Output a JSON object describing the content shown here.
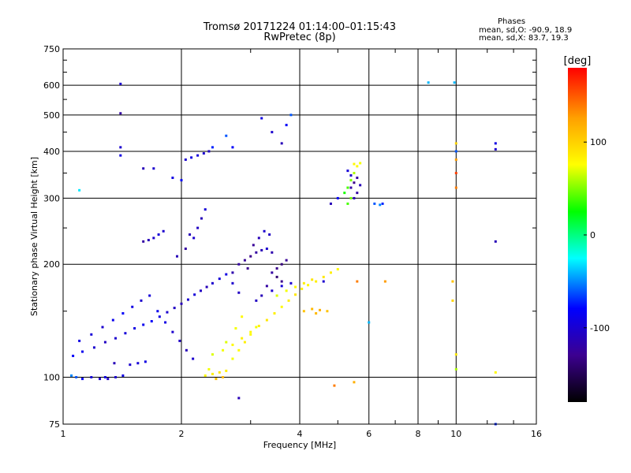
{
  "chart_data": {
    "type": "scatter",
    "title": "Tromsø 20171224 01:14:00–01:15:43",
    "subtitle": "RwPretec (8p)",
    "xlabel": "Frequency [MHz]",
    "ylabel": "Stationary phase Virtual Height [km]",
    "x_scale": "log",
    "y_scale": "log",
    "xlim": [
      1,
      16
    ],
    "ylim": [
      75,
      750
    ],
    "x_ticks": [
      1,
      2,
      4,
      6,
      8,
      10,
      16
    ],
    "x_tick_labels": [
      "1",
      "2",
      "4",
      "6",
      "8",
      "10",
      "16"
    ],
    "y_ticks": [
      75,
      100,
      200,
      300,
      400,
      500,
      600,
      750
    ],
    "y_tick_labels": [
      "75",
      "100",
      "200",
      "300",
      "400",
      "500",
      "600",
      "750"
    ],
    "grid": true,
    "colorbar": {
      "title": "[deg]",
      "range": [
        -180,
        180
      ],
      "ticks": [
        100,
        0,
        -100
      ],
      "tick_labels": [
        "100",
        "0",
        "-100"
      ],
      "colormap": [
        "#000000",
        "#3c0090",
        "#0000ff",
        "#00ffff",
        "#00ff00",
        "#ffff00",
        "#ffa000",
        "#ff0000"
      ]
    },
    "legend": {
      "heading": "Phases",
      "lines": [
        "mean, sd,O: -90.9, 18.9",
        "mean, sd,X:  83.7, 19.3"
      ]
    },
    "series": [
      {
        "values": [
          [
            1.08,
            100,
            -60
          ],
          [
            1.12,
            99,
            -80
          ],
          [
            1.18,
            100,
            -95
          ],
          [
            1.24,
            99,
            -100
          ],
          [
            1.3,
            99,
            -105
          ],
          [
            1.36,
            100,
            -100
          ],
          [
            1.42,
            101,
            -90
          ],
          [
            1.05,
            101,
            -50
          ],
          [
            1.28,
            100,
            -90
          ],
          [
            1.35,
            109,
            -110
          ],
          [
            1.48,
            108,
            -100
          ],
          [
            1.55,
            109,
            -95
          ],
          [
            1.62,
            110,
            -90
          ],
          [
            1.06,
            114,
            -80
          ],
          [
            1.12,
            117,
            -85
          ],
          [
            1.2,
            120,
            -100
          ],
          [
            1.28,
            124,
            -105
          ],
          [
            1.36,
            127,
            -100
          ],
          [
            1.44,
            131,
            -95
          ],
          [
            1.52,
            135,
            -90
          ],
          [
            1.6,
            138,
            -85
          ],
          [
            1.68,
            141,
            -80
          ],
          [
            1.76,
            145,
            -90
          ],
          [
            1.84,
            149,
            -100
          ],
          [
            1.92,
            153,
            -105
          ],
          [
            2.0,
            157,
            -110
          ],
          [
            2.08,
            161,
            -100
          ],
          [
            2.16,
            166,
            -95
          ],
          [
            2.24,
            170,
            -105
          ],
          [
            2.32,
            174,
            -110
          ],
          [
            2.4,
            178,
            -100
          ],
          [
            2.5,
            183,
            -95
          ],
          [
            2.6,
            188,
            -90
          ],
          [
            2.7,
            178,
            -100
          ],
          [
            2.8,
            168,
            -105
          ],
          [
            1.1,
            125,
            -90
          ],
          [
            1.18,
            130,
            -95
          ],
          [
            1.26,
            136,
            -100
          ],
          [
            1.34,
            142,
            -85
          ],
          [
            1.42,
            148,
            -80
          ],
          [
            1.5,
            154,
            -90
          ],
          [
            1.58,
            160,
            -100
          ],
          [
            1.66,
            165,
            -95
          ],
          [
            1.74,
            150,
            -85
          ],
          [
            1.82,
            140,
            -90
          ],
          [
            1.9,
            132,
            -100
          ],
          [
            1.98,
            125,
            -105
          ],
          [
            2.06,
            118,
            -110
          ],
          [
            2.14,
            112,
            -100
          ],
          [
            1.95,
            210,
            -110
          ],
          [
            2.05,
            220,
            -120
          ],
          [
            2.15,
            235,
            -100
          ],
          [
            2.2,
            250,
            -105
          ],
          [
            2.25,
            265,
            -110
          ],
          [
            2.3,
            280,
            -95
          ],
          [
            2.1,
            240,
            -110
          ],
          [
            1.7,
            235,
            -100
          ],
          [
            1.75,
            240,
            -95
          ],
          [
            1.8,
            245,
            -100
          ],
          [
            1.65,
            232,
            -110
          ],
          [
            1.6,
            230,
            -120
          ],
          [
            2.05,
            380,
            -100
          ],
          [
            2.12,
            385,
            -90
          ],
          [
            2.2,
            390,
            -95
          ],
          [
            2.28,
            395,
            -100
          ],
          [
            2.35,
            400,
            -105
          ],
          [
            2.7,
            190,
            -115
          ],
          [
            2.8,
            200,
            -120
          ],
          [
            2.9,
            205,
            -125
          ],
          [
            3.0,
            210,
            -130
          ],
          [
            3.1,
            215,
            -120
          ],
          [
            3.2,
            218,
            -110
          ],
          [
            3.3,
            220,
            -100
          ],
          [
            3.4,
            215,
            -115
          ],
          [
            2.95,
            195,
            -130
          ],
          [
            3.05,
            225,
            -125
          ],
          [
            3.15,
            235,
            -110
          ],
          [
            3.25,
            245,
            -100
          ],
          [
            3.35,
            240,
            -105
          ],
          [
            3.4,
            190,
            -120
          ],
          [
            3.5,
            195,
            -130
          ],
          [
            3.6,
            200,
            -135
          ],
          [
            3.7,
            205,
            -125
          ],
          [
            3.5,
            185,
            -140
          ],
          [
            3.6,
            180,
            -130
          ],
          [
            3.3,
            175,
            -120
          ],
          [
            3.2,
            165,
            -110
          ],
          [
            3.4,
            170,
            -100
          ],
          [
            3.6,
            175,
            -95
          ],
          [
            3.8,
            178,
            -100
          ],
          [
            3.1,
            160,
            -105
          ],
          [
            2.4,
            115,
            70
          ],
          [
            2.55,
            118,
            75
          ],
          [
            2.7,
            122,
            80
          ],
          [
            2.85,
            127,
            85
          ],
          [
            3.0,
            132,
            80
          ],
          [
            3.15,
            137,
            85
          ],
          [
            3.3,
            142,
            90
          ],
          [
            3.45,
            148,
            85
          ],
          [
            3.6,
            154,
            80
          ],
          [
            3.75,
            160,
            85
          ],
          [
            3.9,
            166,
            90
          ],
          [
            4.05,
            172,
            85
          ],
          [
            4.2,
            176,
            80
          ],
          [
            4.4,
            180,
            85
          ],
          [
            4.6,
            185,
            90
          ],
          [
            4.8,
            190,
            85
          ],
          [
            5.0,
            194,
            80
          ],
          [
            3.5,
            165,
            70
          ],
          [
            3.7,
            170,
            75
          ],
          [
            3.9,
            174,
            80
          ],
          [
            4.1,
            178,
            85
          ],
          [
            4.3,
            182,
            90
          ],
          [
            2.3,
            101,
            80
          ],
          [
            2.4,
            102,
            85
          ],
          [
            2.5,
            103,
            90
          ],
          [
            2.6,
            104,
            85
          ],
          [
            2.35,
            105,
            75
          ],
          [
            2.45,
            99,
            110
          ],
          [
            2.55,
            100,
            115
          ],
          [
            2.7,
            112,
            75
          ],
          [
            2.8,
            118,
            80
          ],
          [
            2.9,
            124,
            85
          ],
          [
            3.0,
            130,
            80
          ],
          [
            3.1,
            136,
            75
          ],
          [
            2.6,
            124,
            70
          ],
          [
            2.75,
            135,
            75
          ],
          [
            2.85,
            145,
            80
          ],
          [
            4.1,
            150,
            110
          ],
          [
            4.3,
            152,
            115
          ],
          [
            4.5,
            151,
            120
          ],
          [
            4.7,
            150,
            110
          ],
          [
            4.4,
            148,
            115
          ],
          [
            5.4,
            320,
            -120
          ],
          [
            5.5,
            330,
            -130
          ],
          [
            5.6,
            340,
            -120
          ],
          [
            5.7,
            325,
            -110
          ],
          [
            5.6,
            310,
            -120
          ],
          [
            5.5,
            300,
            -110
          ],
          [
            5.4,
            345,
            -100
          ],
          [
            5.3,
            355,
            -95
          ],
          [
            5.2,
            310,
            30
          ],
          [
            5.3,
            320,
            40
          ],
          [
            5.4,
            335,
            50
          ],
          [
            5.5,
            350,
            60
          ],
          [
            5.6,
            365,
            80
          ],
          [
            5.7,
            372,
            75
          ],
          [
            5.5,
            370,
            80
          ],
          [
            5.3,
            290,
            40
          ],
          [
            5.4,
            300,
            50
          ],
          [
            6.2,
            290,
            -60
          ],
          [
            6.4,
            288,
            -50
          ],
          [
            6.5,
            290,
            -70
          ],
          [
            4.8,
            290,
            -110
          ],
          [
            5.0,
            300,
            -80
          ],
          [
            1.4,
            410,
            -100
          ],
          [
            1.4,
            390,
            -90
          ],
          [
            1.4,
            505,
            -120
          ],
          [
            1.4,
            605,
            -100
          ],
          [
            1.6,
            360,
            -110
          ],
          [
            1.7,
            360,
            -100
          ],
          [
            1.9,
            340,
            -90
          ],
          [
            2.0,
            335,
            -80
          ],
          [
            2.4,
            410,
            -70
          ],
          [
            2.6,
            440,
            -60
          ],
          [
            2.7,
            410,
            -80
          ],
          [
            3.2,
            490,
            -90
          ],
          [
            3.4,
            450,
            -100
          ],
          [
            3.6,
            420,
            -110
          ],
          [
            3.7,
            470,
            -80
          ],
          [
            3.8,
            500,
            -60
          ],
          [
            10.0,
            400,
            -60
          ],
          [
            10.0,
            380,
            130
          ],
          [
            10.0,
            350,
            160
          ],
          [
            10.0,
            320,
            140
          ],
          [
            10.0,
            420,
            100
          ],
          [
            9.9,
            610,
            -40
          ],
          [
            8.5,
            610,
            -40
          ],
          [
            12.6,
            405,
            -100
          ],
          [
            12.6,
            420,
            -90
          ],
          [
            12.6,
            230,
            -110
          ],
          [
            10.0,
            115,
            90
          ],
          [
            10.0,
            105,
            60
          ],
          [
            9.8,
            160,
            100
          ],
          [
            9.8,
            180,
            110
          ],
          [
            12.6,
            103,
            80
          ],
          [
            12.6,
            75,
            -70
          ],
          [
            2.8,
            88,
            -110
          ],
          [
            4.9,
            95,
            140
          ],
          [
            5.5,
            97,
            120
          ],
          [
            6.6,
            180,
            130
          ],
          [
            5.6,
            180,
            140
          ],
          [
            4.6,
            180,
            -100
          ],
          [
            6.0,
            140,
            -40
          ],
          [
            1.1,
            315,
            -30
          ]
        ]
      }
    ]
  }
}
